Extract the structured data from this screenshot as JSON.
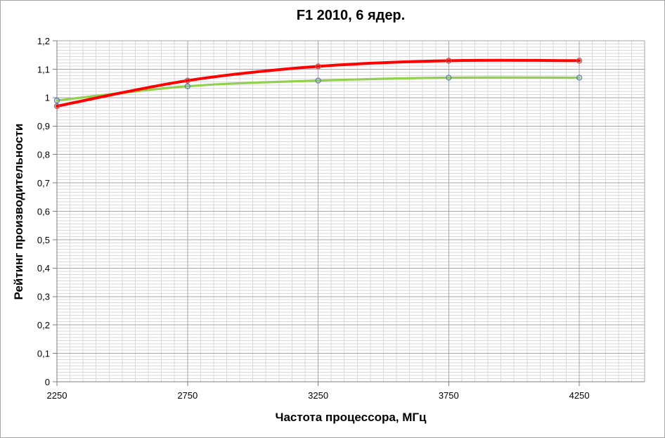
{
  "chart_data": {
    "type": "line",
    "title": "F1 2010, 6 ядер.",
    "xlabel": "Частота процессора, МГц",
    "ylabel": "Рейтинг производительности",
    "x": [
      2250,
      2750,
      3250,
      3750,
      4250
    ],
    "series": [
      {
        "name": "green-series",
        "values": [
          0.99,
          1.04,
          1.06,
          1.07,
          1.07
        ],
        "line_color": "#92d050",
        "marker_color": "#4f81bd",
        "line_width": 3.2,
        "marker": "open-circle"
      },
      {
        "name": "red-series",
        "values": [
          0.97,
          1.06,
          1.11,
          1.13,
          1.13
        ],
        "line_color": "#ff0000",
        "marker_color": "#c0504d",
        "line_width": 4,
        "marker": "open-circle"
      }
    ],
    "smoothed": true,
    "legend": "none",
    "axes": {
      "x": {
        "min": 2250,
        "max": 4500,
        "major_unit": 500,
        "minor_divisions": 10,
        "tick_labels": [
          "2250",
          "2750",
          "3250",
          "3750",
          "4250"
        ]
      },
      "y": {
        "min": 0,
        "max": 1.2,
        "major_unit": 0.1,
        "minor_divisions": 9,
        "tick_labels": [
          "0",
          "0,1",
          "0,2",
          "0,3",
          "0,4",
          "0,5",
          "0,6",
          "0,7",
          "0,8",
          "0,9",
          "1",
          "1,1",
          "1,2"
        ]
      }
    },
    "grid": {
      "minor_color": "#d9d9d9",
      "major_color": "#a6a6a6",
      "axis_color": "#7f7f7f",
      "minor_on": true,
      "major_on": true
    },
    "background": "#ffffff",
    "border_color": "#a6a6a6"
  }
}
